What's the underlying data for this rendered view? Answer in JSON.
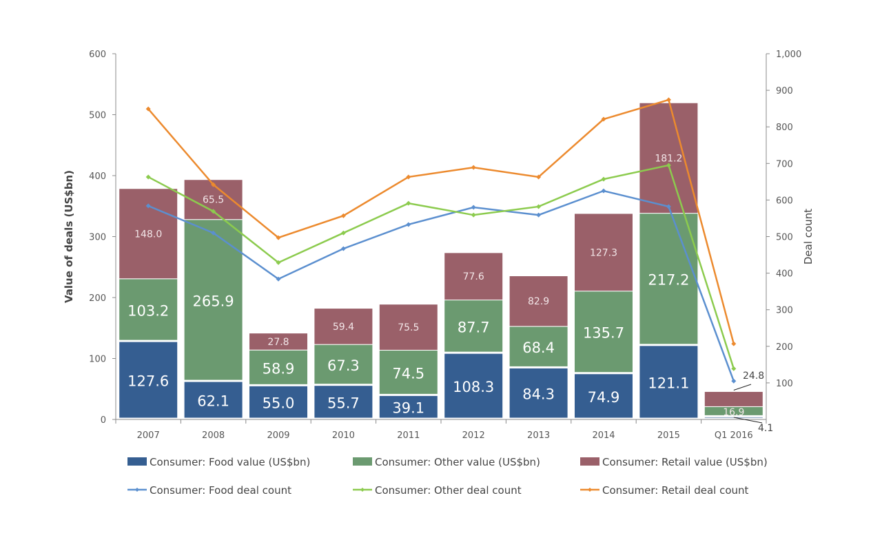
{
  "chart_data": {
    "type": "bar",
    "subtype": "stacked bar with lines on secondary axis",
    "categories": [
      "2007",
      "2008",
      "2009",
      "2010",
      "2011",
      "2012",
      "2013",
      "2014",
      "2015",
      "Q1 2016"
    ],
    "ylabel": "Value of deals (US$bn)",
    "y2label": "Deal count",
    "ylim": [
      0,
      600
    ],
    "yticks": [
      "0",
      "100",
      "200",
      "300",
      "400",
      "500",
      "600"
    ],
    "y2lim": [
      0,
      1000
    ],
    "y2ticks": [
      "100",
      "200",
      "300",
      "400",
      "500",
      "600",
      "700",
      "800",
      "900",
      "1,000"
    ],
    "grid": false,
    "legend_position": "bottom",
    "bar_series": [
      {
        "name": "Consumer: Food value (US$bn)",
        "color": "#355e91",
        "values": [
          127.6,
          62.1,
          55.0,
          55.7,
          39.1,
          108.3,
          84.3,
          74.9,
          121.1,
          4.1
        ],
        "labels": [
          "127.6",
          "62.1",
          "55.0",
          "55.7",
          "39.1",
          "108.3",
          "84.3",
          "74.9",
          "121.1",
          "4.1"
        ]
      },
      {
        "name": "Consumer: Other value (US$bn)",
        "color": "#6b9a70",
        "values": [
          103.2,
          265.9,
          58.9,
          67.3,
          74.5,
          87.7,
          68.4,
          135.7,
          217.2,
          16.9
        ],
        "labels": [
          "103.2",
          "265.9",
          "58.9",
          "67.3",
          "74.5",
          "87.7",
          "68.4",
          "135.7",
          "217.2",
          "16.9"
        ]
      },
      {
        "name": "Consumer: Retail value (US$bn)",
        "color": "#9a6069",
        "values": [
          148.0,
          65.5,
          27.8,
          59.4,
          75.5,
          77.6,
          82.9,
          127.3,
          181.2,
          24.8
        ],
        "labels": [
          "148.0",
          "65.5",
          "27.8",
          "59.4",
          "75.5",
          "77.6",
          "82.9",
          "127.3",
          "181.2",
          "24.8"
        ]
      }
    ],
    "line_series": [
      {
        "name": "Consumer: Food deal count",
        "color": "#5b8fcf",
        "values": [
          584,
          510,
          384,
          467,
          533,
          580,
          559,
          625,
          582,
          105
        ]
      },
      {
        "name": "Consumer: Other deal count",
        "color": "#8ccb4e",
        "values": [
          663,
          569,
          429,
          510,
          591,
          559,
          582,
          657,
          695,
          139
        ]
      },
      {
        "name": "Consumer: Retail deal count",
        "color": "#ec8a2e",
        "values": [
          849,
          642,
          497,
          557,
          663,
          689,
          663,
          821,
          874,
          207
        ]
      }
    ]
  }
}
